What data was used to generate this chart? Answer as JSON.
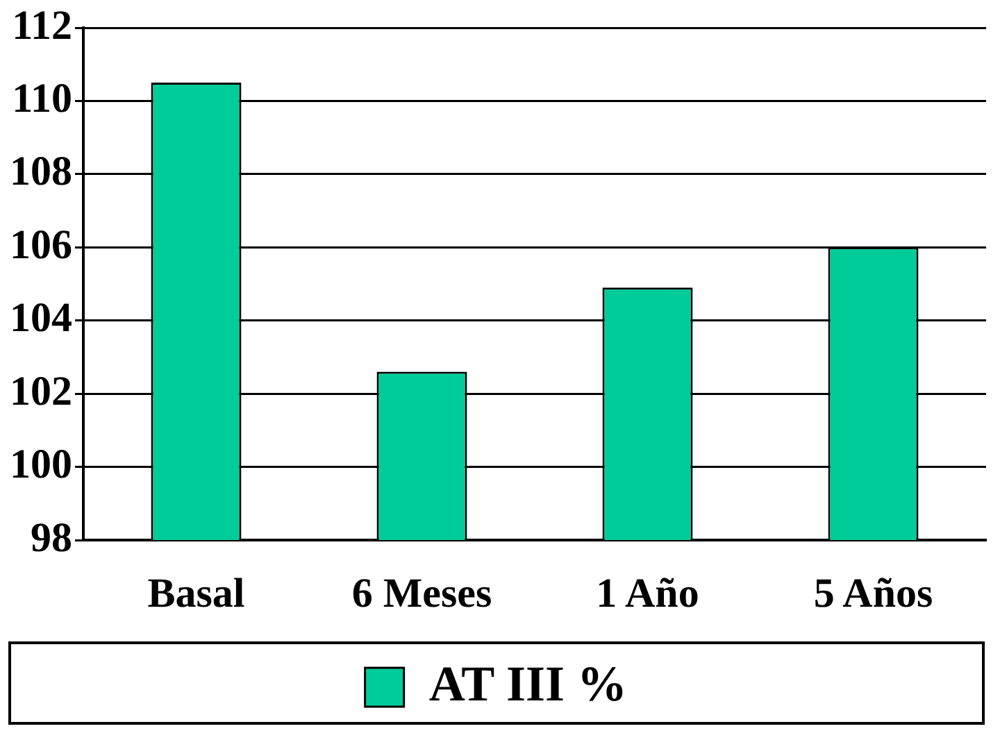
{
  "chart_data": {
    "type": "bar",
    "categories": [
      "Basal",
      "6 Meses",
      "1 Año",
      "5 Años"
    ],
    "series": [
      {
        "name": "AT III %",
        "color": "#00cc99",
        "values": [
          110.5,
          102.6,
          104.9,
          106.0
        ]
      }
    ],
    "ylim": [
      98,
      112
    ],
    "yticks": [
      98,
      100,
      102,
      104,
      106,
      108,
      110,
      112
    ],
    "grid": "y",
    "legend": "bottom"
  }
}
